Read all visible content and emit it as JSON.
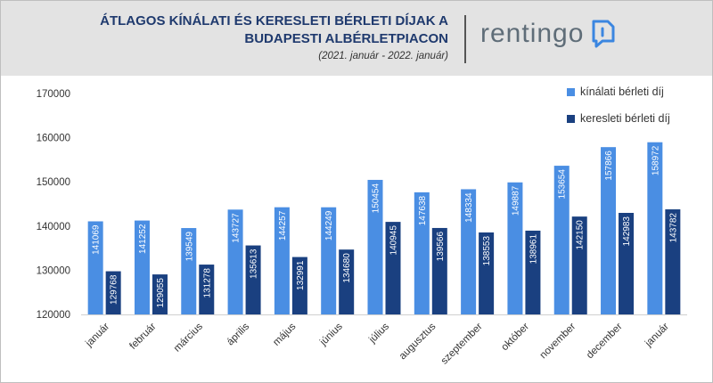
{
  "header": {
    "title_line1": "ÁTLAGOS KÍNÁLATI ÉS KERESLETI BÉRLETI DÍJAK A",
    "title_line2": "BUDAPESTI ALBÉRLETPIACON",
    "subtitle": "(2021. január - 2022. január)",
    "brand": "rentingo",
    "brand_icon": "speech-bubble-logo-icon"
  },
  "chart_data": {
    "type": "bar",
    "categories": [
      "január",
      "február",
      "március",
      "április",
      "május",
      "június",
      "július",
      "augusztus",
      "szeptember",
      "október",
      "november",
      "december",
      "január"
    ],
    "series": [
      {
        "name": "kínálati bérleti díj",
        "color": "#4a8ee3",
        "values": [
          141069,
          141252,
          139549,
          143727,
          144257,
          144249,
          150454,
          147638,
          148334,
          149887,
          153654,
          157866,
          158972
        ]
      },
      {
        "name": "keresleti bérleti díj",
        "color": "#1a4080",
        "values": [
          129768,
          129055,
          131278,
          135613,
          132991,
          134680,
          140945,
          139566,
          138553,
          138961,
          142150,
          142983,
          143782
        ]
      }
    ],
    "yticks": [
      120000,
      130000,
      140000,
      150000,
      160000,
      170000
    ],
    "ylim": [
      120000,
      170000
    ],
    "grid": false,
    "legend": "top-right",
    "data_labels": "inside-bar-rotated"
  }
}
